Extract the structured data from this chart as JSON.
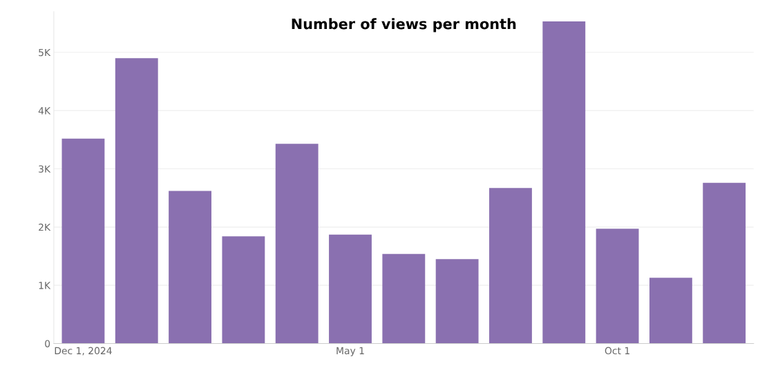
{
  "chart_data": {
    "type": "bar",
    "title": "Number of views per month",
    "categories": [
      "Dec 1, 2024",
      null,
      null,
      null,
      null,
      "May 1",
      null,
      null,
      null,
      null,
      "Oct 1",
      null,
      null
    ],
    "values": [
      3520,
      4900,
      2620,
      1840,
      3430,
      1870,
      1540,
      1450,
      2670,
      5530,
      1970,
      1130,
      2760
    ],
    "color": "#8a70b0",
    "ylim": [
      0,
      5700
    ],
    "yticks": [
      0,
      {
        "value": 1000,
        "label": "1K"
      },
      {
        "value": 2000,
        "label": "2K"
      },
      {
        "value": 3000,
        "label": "3K"
      },
      {
        "value": 4000,
        "label": "4K"
      },
      {
        "value": 5000,
        "label": "5K"
      }
    ],
    "grid": "y"
  }
}
